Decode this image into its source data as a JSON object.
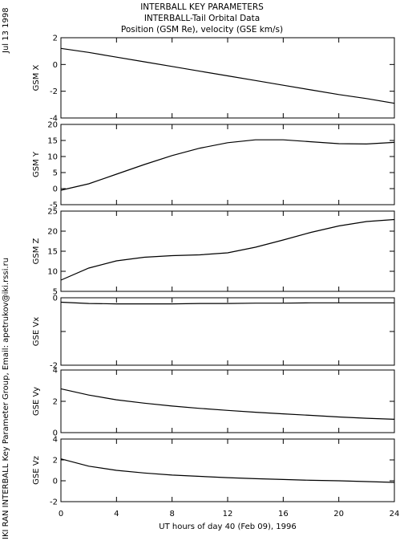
{
  "header": {
    "title": "INTERBALL KEY PARAMETERS",
    "subtitle": "INTERBALL-Tail Orbital Data",
    "subtitle2": "Position (GSM Re), velocity (GSE km/s)"
  },
  "side_date": "Jul 13 1998",
  "side_credit": "IKI RAN INTERBALL Key Parameter Group, Email: apetrukov@iki.rssi.ru",
  "chart_data": {
    "type": "line",
    "xlabel": "UT hours of day  40 (Feb 09), 1996",
    "xlim": [
      0,
      24
    ],
    "xticks": [
      0,
      4,
      8,
      12,
      16,
      20,
      24
    ],
    "xtick_labels": [
      "0",
      "4",
      "8",
      "12",
      "16",
      "20",
      "24"
    ],
    "grid": false,
    "panels": [
      {
        "ylabel": "GSM X",
        "ylim": [
          -4,
          2
        ],
        "yticks": [
          -4,
          -2,
          0,
          2
        ],
        "ytick_labels": [
          "-4",
          "-2",
          "0",
          "2"
        ],
        "x": [
          0,
          2,
          4,
          6,
          8,
          10,
          12,
          14,
          16,
          18,
          20,
          22,
          24
        ],
        "values": [
          1.2,
          0.9,
          0.55,
          0.2,
          -0.15,
          -0.5,
          -0.85,
          -1.2,
          -1.55,
          -1.9,
          -2.25,
          -2.55,
          -2.9
        ]
      },
      {
        "ylabel": "GSM Y",
        "ylim": [
          -5,
          20
        ],
        "yticks": [
          -5,
          0,
          5,
          10,
          15,
          20
        ],
        "ytick_labels": [
          "-5",
          "0",
          "5",
          "10",
          "15",
          "20"
        ],
        "x": [
          0,
          2,
          4,
          6,
          8,
          10,
          12,
          14,
          16,
          18,
          20,
          22,
          24
        ],
        "values": [
          -0.5,
          1.5,
          4.5,
          7.5,
          10.3,
          12.6,
          14.3,
          15.2,
          15.2,
          14.6,
          14.0,
          13.9,
          14.4
        ]
      },
      {
        "ylabel": "GSM Z",
        "ylim": [
          5,
          25
        ],
        "yticks": [
          5,
          10,
          15,
          20,
          25
        ],
        "ytick_labels": [
          "5",
          "10",
          "15",
          "20",
          "25"
        ],
        "x": [
          0,
          2,
          4,
          6,
          8,
          10,
          12,
          14,
          16,
          18,
          20,
          22,
          24
        ],
        "values": [
          7.8,
          10.8,
          12.6,
          13.5,
          13.9,
          14.1,
          14.6,
          16.0,
          17.8,
          19.7,
          21.3,
          22.4,
          22.9
        ]
      },
      {
        "ylabel": "GSE Vx",
        "ylim": [
          -2,
          0
        ],
        "yticks": [
          -2,
          -1,
          0
        ],
        "ytick_labels": [
          "-2",
          "",
          "0"
        ],
        "x": [
          0,
          2,
          4,
          6,
          8,
          10,
          12,
          14,
          16,
          18,
          20,
          22,
          24
        ],
        "values": [
          -0.13,
          -0.17,
          -0.18,
          -0.18,
          -0.18,
          -0.17,
          -0.17,
          -0.16,
          -0.16,
          -0.15,
          -0.15,
          -0.15,
          -0.15
        ]
      },
      {
        "ylabel": "GSE Vy",
        "ylim": [
          0,
          4
        ],
        "yticks": [
          0,
          2,
          4
        ],
        "ytick_labels": [
          "0",
          "2",
          "4"
        ],
        "x": [
          0,
          2,
          4,
          6,
          8,
          10,
          12,
          14,
          16,
          18,
          20,
          22,
          24
        ],
        "values": [
          2.8,
          2.4,
          2.1,
          1.88,
          1.7,
          1.55,
          1.42,
          1.3,
          1.2,
          1.1,
          1.0,
          0.92,
          0.85
        ]
      },
      {
        "ylabel": "GSE Vz",
        "ylim": [
          -2,
          4
        ],
        "yticks": [
          -2,
          0,
          2,
          4
        ],
        "ytick_labels": [
          "-2",
          "0",
          "2",
          "4"
        ],
        "x": [
          0,
          2,
          4,
          6,
          8,
          10,
          12,
          14,
          16,
          18,
          20,
          22,
          24
        ],
        "values": [
          2.1,
          1.4,
          1.0,
          0.75,
          0.55,
          0.42,
          0.3,
          0.2,
          0.12,
          0.05,
          0.0,
          -0.08,
          -0.15
        ]
      }
    ]
  }
}
